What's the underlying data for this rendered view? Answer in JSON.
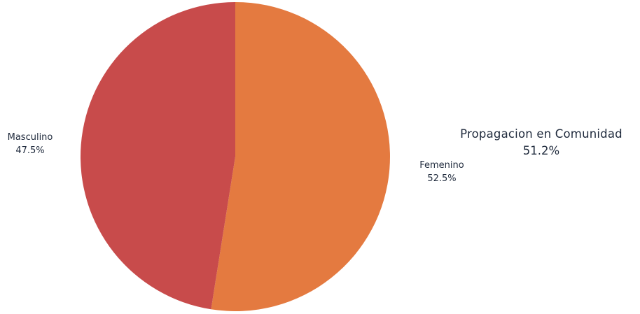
{
  "chart_data": {
    "type": "pie",
    "categories": [
      "Femenino",
      "Masculino"
    ],
    "values": [
      52.5,
      47.5
    ],
    "value_labels": [
      "52.5%",
      "47.5%"
    ],
    "colors": [
      "#e47a40",
      "#c84b4b"
    ],
    "start_angle": "12 o'clock",
    "direction": "clockwise",
    "legend": "none"
  },
  "colors": {
    "femenino": "#e47a40",
    "masculino": "#c84b4b"
  },
  "side_stat": {
    "title": "Propagacion en Comunidad",
    "value": "51.2%"
  }
}
